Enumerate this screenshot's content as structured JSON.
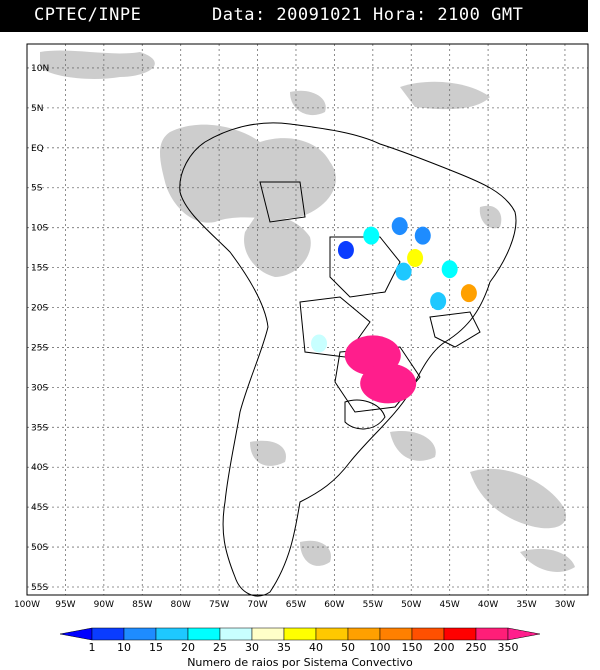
{
  "header": {
    "source": "CPTEC/INPE",
    "date_time": "Data: 20091021 Hora: 2100 GMT"
  },
  "map": {
    "lat_labels": [
      "10N",
      "5N",
      "EQ",
      "5S",
      "10S",
      "15S",
      "20S",
      "25S",
      "30S",
      "35S",
      "40S",
      "45S",
      "50S",
      "55S"
    ],
    "lat_values": [
      10,
      5,
      0,
      -5,
      -10,
      -15,
      -20,
      -25,
      -30,
      -35,
      -40,
      -45,
      -50,
      -55
    ],
    "lon_labels": [
      "100W",
      "95W",
      "90W",
      "85W",
      "80W",
      "75W",
      "70W",
      "65W",
      "60W",
      "55W",
      "50W",
      "45W",
      "40W",
      "35W",
      "30W"
    ],
    "lon_values": [
      -100,
      -95,
      -90,
      -85,
      -80,
      -75,
      -70,
      -65,
      -60,
      -55,
      -50,
      -45,
      -40,
      -35,
      -30
    ],
    "lat_range": [
      -56,
      13
    ],
    "lon_range": [
      -100,
      -27
    ]
  },
  "legend": {
    "values": [
      "1",
      "10",
      "15",
      "20",
      "25",
      "30",
      "35",
      "40",
      "50",
      "100",
      "150",
      "200",
      "250",
      "350"
    ],
    "colors": [
      "#0000ff",
      "#0a3cff",
      "#1e8cff",
      "#1ec8ff",
      "#00ffff",
      "#c8ffff",
      "#ffffc8",
      "#ffff00",
      "#ffc800",
      "#ffa000",
      "#ff8000",
      "#ff5000",
      "#ff0000",
      "#ff1e78",
      "#ff1e8c"
    ],
    "title": "Numero de raios por Sistema Convectivo"
  },
  "systems": [
    {
      "lon": -58.5,
      "lat": -12.8,
      "level": 1
    },
    {
      "lon": -55.2,
      "lat": -11.0,
      "level": 4
    },
    {
      "lon": -51.5,
      "lat": -9.8,
      "level": 2
    },
    {
      "lon": -48.5,
      "lat": -11.0,
      "level": 2
    },
    {
      "lon": -49.5,
      "lat": -13.8,
      "level": 7
    },
    {
      "lon": -51.0,
      "lat": -15.5,
      "level": 3
    },
    {
      "lon": -45.0,
      "lat": -15.2,
      "level": 4
    },
    {
      "lon": -42.5,
      "lat": -18.2,
      "level": 9
    },
    {
      "lon": -55.0,
      "lat": -26.0,
      "level": 14
    },
    {
      "lon": -53.0,
      "lat": -29.5,
      "level": 14
    },
    {
      "lon": -46.5,
      "lat": -19.2,
      "level": 3
    },
    {
      "lon": -62.0,
      "lat": -24.5,
      "level": 5
    }
  ]
}
